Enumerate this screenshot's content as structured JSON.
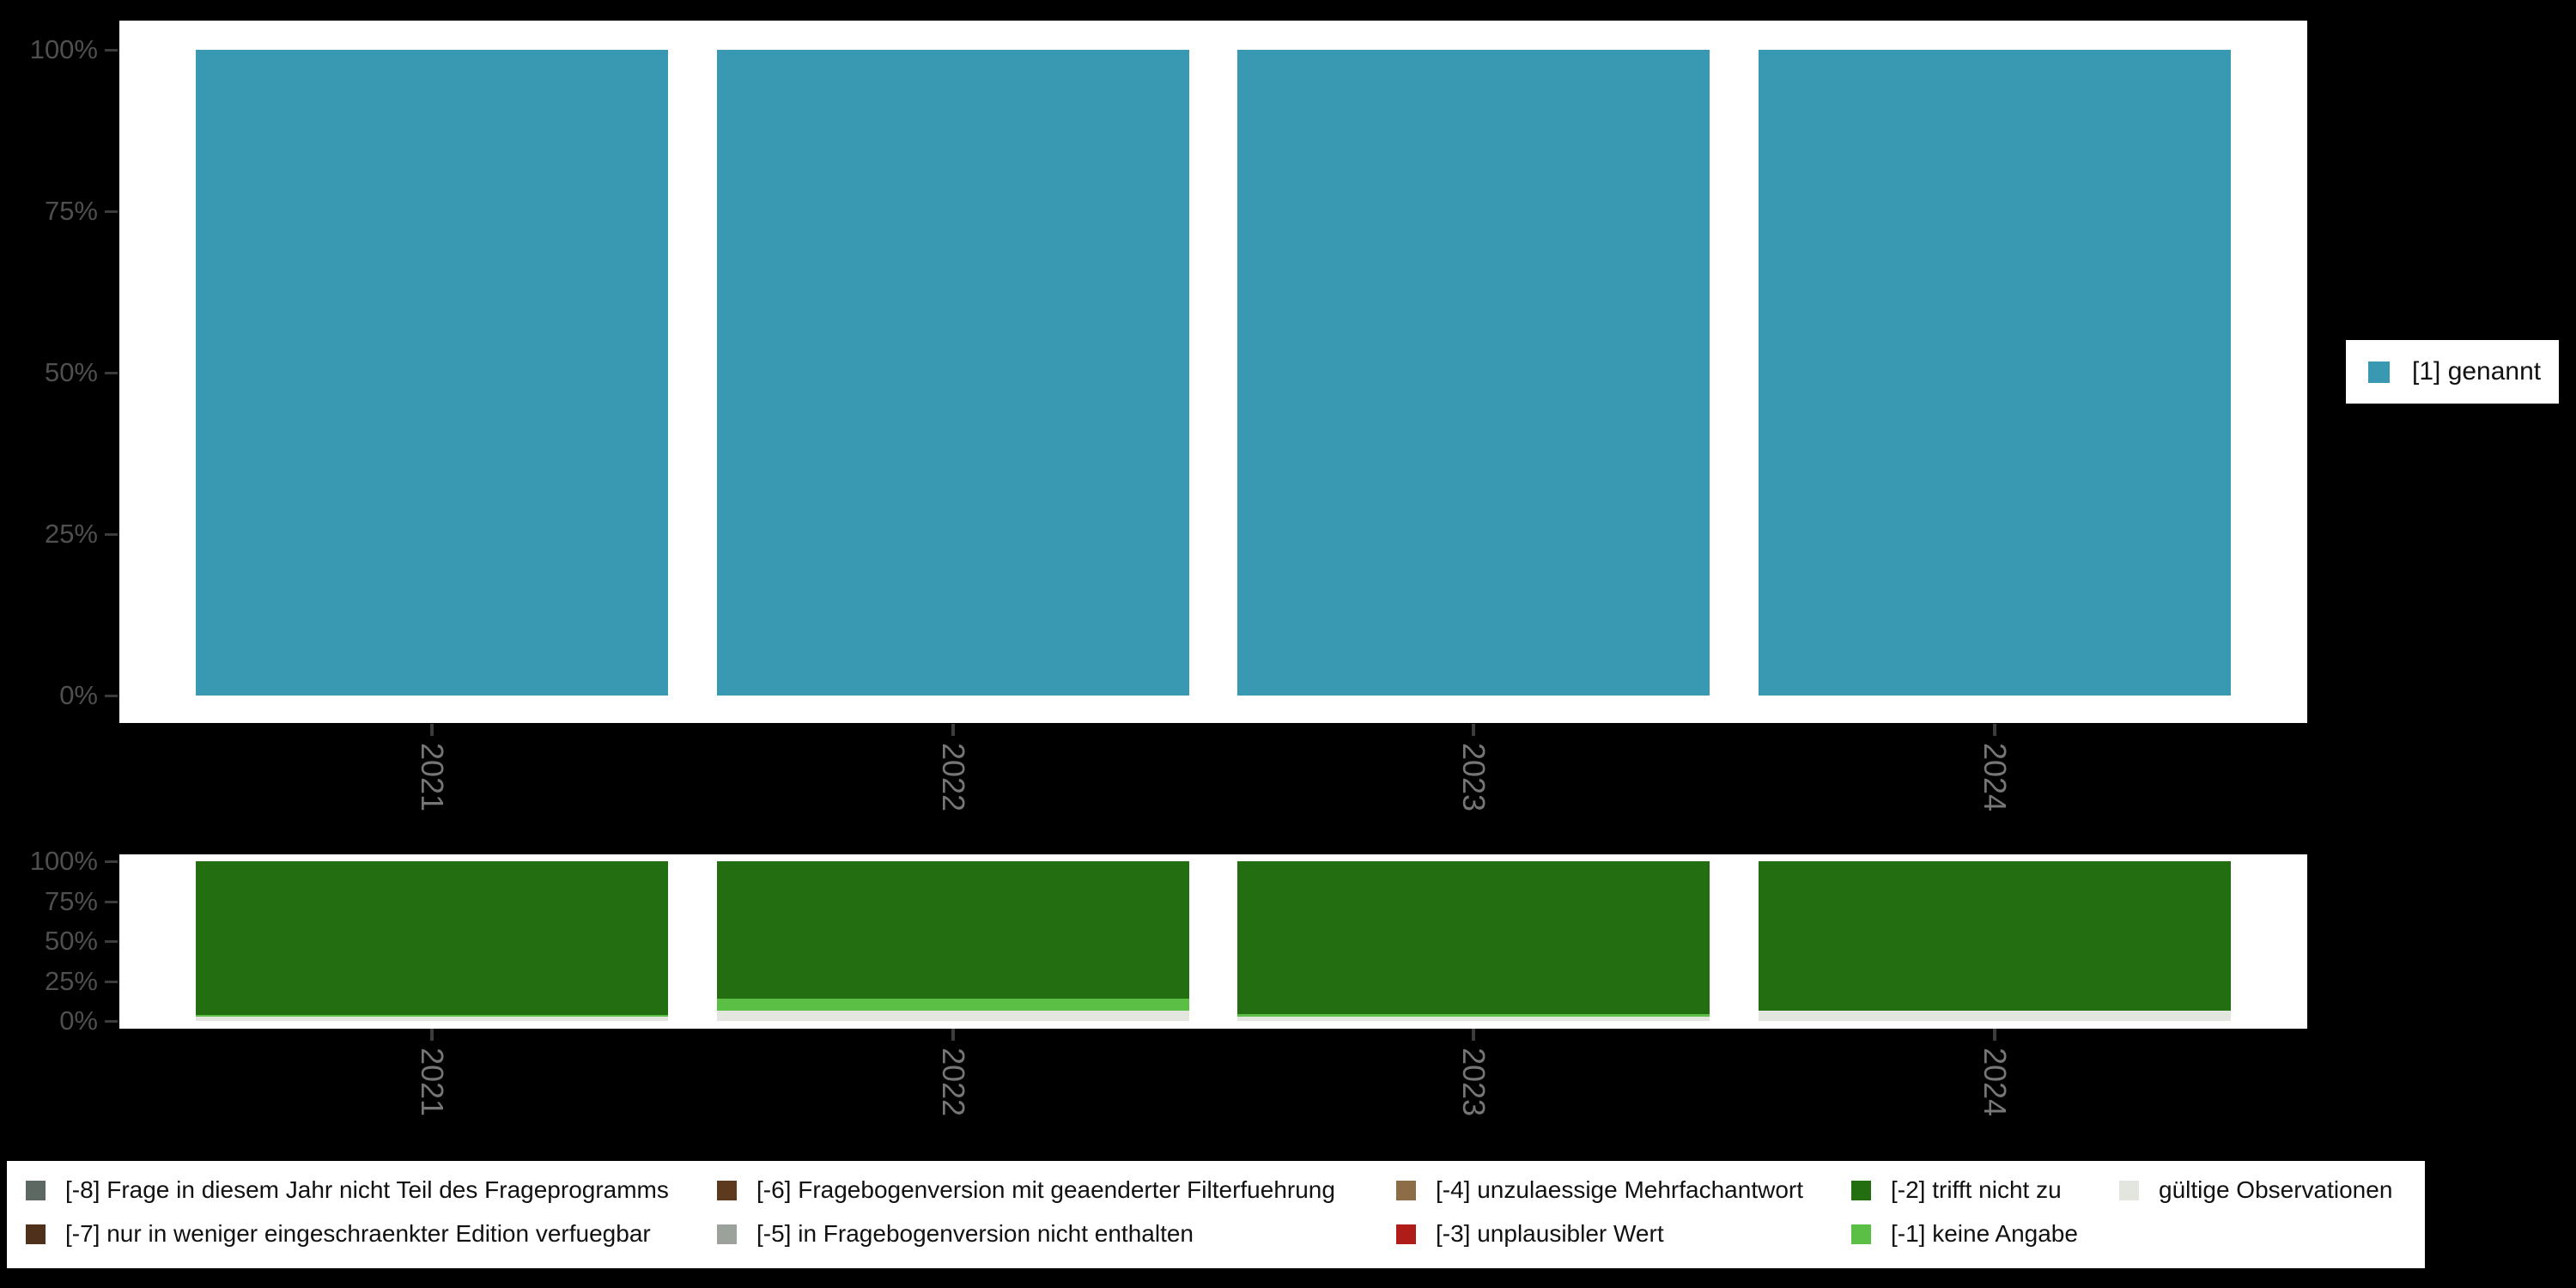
{
  "colors": {
    "background": "#000000",
    "panel_background": "#ffffff",
    "genannt_teal": "#3a99b2",
    "trifft_nicht_zu_green": "#226e11",
    "keine_angabe_green": "#5bbe45",
    "gueltige_observationen_grey": "#e2e6df",
    "code_m8_grey_green": "#5e6862",
    "code_m7_dark_brown": "#4f311b",
    "code_m6_brown": "#5d3a1e",
    "code_m5_grey": "#9aa29b",
    "code_m4_tan": "#8c6d48",
    "code_m3_red": "#b01d18",
    "axis_tick": "#3c3c3c",
    "y_axis_label_grey": "#4f4f4f",
    "year_label_grey": "#767676",
    "legend_text": "#111111"
  },
  "top_axis": {
    "y_tick_labels": [
      "0%",
      "25%",
      "50%",
      "75%",
      "100%"
    ],
    "x_tick_labels": [
      "2021",
      "2022",
      "2023",
      "2024"
    ]
  },
  "bottom_axis": {
    "y_tick_labels": [
      "0%",
      "25%",
      "50%",
      "75%",
      "100%"
    ],
    "x_tick_labels": [
      "2021",
      "2022",
      "2023",
      "2024"
    ]
  },
  "legend_right": {
    "items": [
      {
        "label": "[1] genannt",
        "color": "#3a99b2"
      }
    ]
  },
  "legend_bottom": {
    "items": [
      {
        "col": 0,
        "row": 0,
        "label": "[-8] Frage in diesem Jahr nicht Teil des Frageprogramms",
        "color": "#5e6862"
      },
      {
        "col": 0,
        "row": 1,
        "label": "[-7] nur in weniger eingeschraenkter Edition verfuegbar",
        "color": "#4f311b"
      },
      {
        "col": 1,
        "row": 0,
        "label": "[-6] Fragebogenversion mit geaenderter Filterfuehrung",
        "color": "#5d3a1e"
      },
      {
        "col": 1,
        "row": 1,
        "label": "[-5] in Fragebogenversion nicht enthalten",
        "color": "#9aa29b"
      },
      {
        "col": 2,
        "row": 0,
        "label": "[-4] unzulaessige Mehrfachantwort",
        "color": "#8c6d48"
      },
      {
        "col": 2,
        "row": 1,
        "label": "[-3] unplausibler Wert",
        "color": "#b01d18"
      },
      {
        "col": 3,
        "row": 0,
        "label": "[-2] trifft nicht zu",
        "color": "#226e11"
      },
      {
        "col": 3,
        "row": 1,
        "label": "[-1] keine Angabe",
        "color": "#5bbe45"
      },
      {
        "col": 4,
        "row": 0,
        "label": "gültige Observationen",
        "color": "#e2e6df"
      }
    ]
  },
  "chart_data": [
    {
      "type": "bar",
      "title": "",
      "xlabel": "",
      "ylabel": "",
      "categories": [
        "2021",
        "2022",
        "2023",
        "2024"
      ],
      "series": [
        {
          "name": "[1] genannt",
          "color": "#3a99b2",
          "values": [
            100,
            100,
            100,
            100
          ]
        }
      ],
      "y_ticks": [
        "0%",
        "25%",
        "50%",
        "75%",
        "100%"
      ],
      "ylim": [
        0,
        100
      ],
      "grid": false,
      "legend_position": "right"
    },
    {
      "type": "stacked_bar",
      "title": "",
      "xlabel": "",
      "ylabel": "",
      "categories": [
        "2021",
        "2022",
        "2023",
        "2024"
      ],
      "series": [
        {
          "name": "gültige Observationen",
          "color": "#e2e6df",
          "values": [
            2.8,
            6.6,
            2.7,
            6.3
          ]
        },
        {
          "name": "[-1] keine Angabe",
          "color": "#5bbe45",
          "values": [
            1.1,
            7.2,
            1.6,
            0
          ]
        },
        {
          "name": "[-2] trifft nicht zu",
          "color": "#226e11",
          "values": [
            96.1,
            86.2,
            95.7,
            93.7
          ]
        }
      ],
      "y_ticks": [
        "0%",
        "25%",
        "50%",
        "75%",
        "100%"
      ],
      "ylim": [
        0,
        100
      ],
      "grid": false,
      "legend_position": "bottom"
    }
  ]
}
